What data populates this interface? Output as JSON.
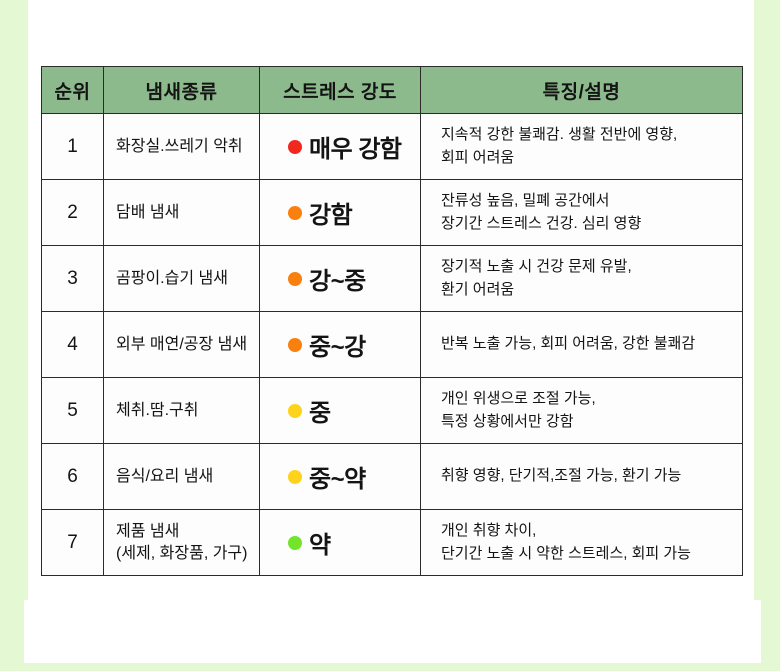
{
  "colors": {
    "page_background": "#e3f8d3",
    "panel_background": "#ffffff",
    "header_background": "#8cba8d",
    "table_border": "#2b2b2b",
    "text": "#141414",
    "dot_red": "#f2281e",
    "dot_orange": "#f9800f",
    "dot_yellow": "#ffd21c",
    "dot_green": "#72e42a"
  },
  "chart_data": {
    "type": "table",
    "title": "",
    "columns": [
      "순위",
      "냄새종류",
      "스트레스 강도",
      "특징/설명"
    ],
    "rows": [
      {
        "rank": "1",
        "smell_line1": "화장실.쓰레기 악취",
        "smell_line2": "",
        "stress": "매우 강함",
        "dot_color": "#f2281e",
        "desc_line1": "지속적 강한 불쾌감. 생활 전반에 영향,",
        "desc_line2": "회피 어려움"
      },
      {
        "rank": "2",
        "smell_line1": "담배 냄새",
        "smell_line2": "",
        "stress": "강함",
        "dot_color": "#f9800f",
        "desc_line1": "잔류성 높음, 밀폐 공간에서",
        "desc_line2": "장기간 스트레스 건강. 심리 영향"
      },
      {
        "rank": "3",
        "smell_line1": "곰팡이.습기 냄새",
        "smell_line2": "",
        "stress": "강~중",
        "dot_color": "#f9800f",
        "desc_line1": "장기적 노출 시 건강 문제 유발,",
        "desc_line2": "환기 어려움"
      },
      {
        "rank": "4",
        "smell_line1": "외부 매연/공장 냄새",
        "smell_line2": "",
        "stress": "중~강",
        "dot_color": "#f9800f",
        "desc_line1": "반복 노출 가능, 회피 어려움, 강한 불쾌감",
        "desc_line2": ""
      },
      {
        "rank": "5",
        "smell_line1": "체취.땀.구취",
        "smell_line2": "",
        "stress": "중",
        "dot_color": "#ffd21c",
        "desc_line1": "개인 위생으로 조절 가능,",
        "desc_line2": "특정 상황에서만 강함"
      },
      {
        "rank": "6",
        "smell_line1": "음식/요리 냄새",
        "smell_line2": "",
        "stress": "중~약",
        "dot_color": "#ffd21c",
        "desc_line1": "취향 영향, 단기적,조절 가능, 환기 가능",
        "desc_line2": ""
      },
      {
        "rank": "7",
        "smell_line1": "제품 냄새",
        "smell_line2": "(세제, 화장품, 가구)",
        "stress": "약",
        "dot_color": "#72e42a",
        "desc_line1": "개인 취향 차이,",
        "desc_line2": "단기간 노출 시 약한 스트레스, 회피 가능"
      }
    ]
  }
}
